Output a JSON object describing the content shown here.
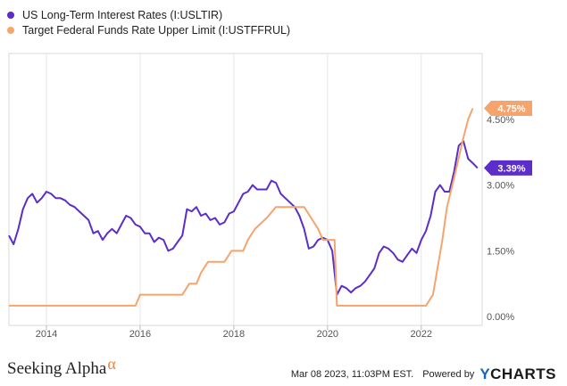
{
  "legend": [
    {
      "label": "US Long-Term Interest Rates (I:USLTIR)",
      "color": "#5b2dc9"
    },
    {
      "label": "Target Federal Funds Rate Upper Limit (I:USTFFRUL)",
      "color": "#f5a46e"
    }
  ],
  "footer": {
    "brand": "Seeking Alpha",
    "brand_mark": "α",
    "timestamp": "Mar 08 2023, 11:03PM EST.",
    "powered": "Powered by",
    "ycharts_y": "Y",
    "ycharts_rest": "CHARTS"
  },
  "chart_data": {
    "type": "line",
    "x_ticks": [
      "2014",
      "2016",
      "2018",
      "2020",
      "2022"
    ],
    "y_ticks": [
      "0.00%",
      "1.50%",
      "3.00%",
      "4.50%"
    ],
    "ylim": [
      -0.2,
      6.0
    ],
    "xlim": [
      2013.2,
      2023.3
    ],
    "grid": "vertical",
    "series": [
      {
        "name": "US Long-Term Interest Rates (I:USLTIR)",
        "color": "#5b2dc9",
        "end_label": "3.39%",
        "points": [
          [
            2013.2,
            1.85
          ],
          [
            2013.3,
            1.65
          ],
          [
            2013.4,
            2.0
          ],
          [
            2013.5,
            2.45
          ],
          [
            2013.6,
            2.7
          ],
          [
            2013.7,
            2.8
          ],
          [
            2013.8,
            2.6
          ],
          [
            2013.9,
            2.7
          ],
          [
            2014.0,
            2.85
          ],
          [
            2014.1,
            2.8
          ],
          [
            2014.2,
            2.7
          ],
          [
            2014.3,
            2.7
          ],
          [
            2014.4,
            2.65
          ],
          [
            2014.5,
            2.55
          ],
          [
            2014.6,
            2.5
          ],
          [
            2014.7,
            2.4
          ],
          [
            2014.8,
            2.3
          ],
          [
            2014.9,
            2.2
          ],
          [
            2015.0,
            1.9
          ],
          [
            2015.1,
            1.95
          ],
          [
            2015.2,
            1.75
          ],
          [
            2015.3,
            1.9
          ],
          [
            2015.4,
            2.0
          ],
          [
            2015.5,
            1.9
          ],
          [
            2015.6,
            2.1
          ],
          [
            2015.7,
            2.3
          ],
          [
            2015.8,
            2.25
          ],
          [
            2015.9,
            2.1
          ],
          [
            2016.0,
            2.05
          ],
          [
            2016.1,
            1.9
          ],
          [
            2016.2,
            1.9
          ],
          [
            2016.3,
            1.7
          ],
          [
            2016.4,
            1.8
          ],
          [
            2016.5,
            1.75
          ],
          [
            2016.6,
            1.5
          ],
          [
            2016.7,
            1.55
          ],
          [
            2016.8,
            1.7
          ],
          [
            2016.9,
            1.85
          ],
          [
            2017.0,
            2.45
          ],
          [
            2017.1,
            2.4
          ],
          [
            2017.2,
            2.5
          ],
          [
            2017.3,
            2.3
          ],
          [
            2017.4,
            2.35
          ],
          [
            2017.5,
            2.2
          ],
          [
            2017.6,
            2.25
          ],
          [
            2017.7,
            2.1
          ],
          [
            2017.8,
            2.15
          ],
          [
            2017.9,
            2.35
          ],
          [
            2018.0,
            2.4
          ],
          [
            2018.1,
            2.6
          ],
          [
            2018.2,
            2.8
          ],
          [
            2018.3,
            2.85
          ],
          [
            2018.4,
            3.0
          ],
          [
            2018.5,
            2.9
          ],
          [
            2018.6,
            2.9
          ],
          [
            2018.7,
            2.9
          ],
          [
            2018.8,
            3.1
          ],
          [
            2018.9,
            3.05
          ],
          [
            2019.0,
            2.8
          ],
          [
            2019.1,
            2.7
          ],
          [
            2019.2,
            2.6
          ],
          [
            2019.3,
            2.5
          ],
          [
            2019.4,
            2.3
          ],
          [
            2019.5,
            2.0
          ],
          [
            2019.6,
            1.55
          ],
          [
            2019.7,
            1.6
          ],
          [
            2019.8,
            1.75
          ],
          [
            2019.9,
            1.8
          ],
          [
            2020.0,
            1.75
          ],
          [
            2020.1,
            1.5
          ],
          [
            2020.2,
            0.5
          ],
          [
            2020.3,
            0.7
          ],
          [
            2020.4,
            0.65
          ],
          [
            2020.5,
            0.55
          ],
          [
            2020.6,
            0.65
          ],
          [
            2020.7,
            0.7
          ],
          [
            2020.8,
            0.8
          ],
          [
            2020.9,
            0.95
          ],
          [
            2021.0,
            1.1
          ],
          [
            2021.1,
            1.45
          ],
          [
            2021.2,
            1.6
          ],
          [
            2021.3,
            1.55
          ],
          [
            2021.4,
            1.45
          ],
          [
            2021.5,
            1.3
          ],
          [
            2021.6,
            1.25
          ],
          [
            2021.7,
            1.4
          ],
          [
            2021.8,
            1.55
          ],
          [
            2021.9,
            1.45
          ],
          [
            2022.0,
            1.75
          ],
          [
            2022.1,
            1.95
          ],
          [
            2022.2,
            2.3
          ],
          [
            2022.3,
            2.85
          ],
          [
            2022.4,
            3.0
          ],
          [
            2022.5,
            2.85
          ],
          [
            2022.6,
            2.85
          ],
          [
            2022.7,
            3.3
          ],
          [
            2022.8,
            3.9
          ],
          [
            2022.9,
            4.0
          ],
          [
            2023.0,
            3.6
          ],
          [
            2023.1,
            3.5
          ],
          [
            2023.2,
            3.39
          ]
        ]
      },
      {
        "name": "Target Federal Funds Rate Upper Limit (I:USTFFRUL)",
        "color": "#f5a46e",
        "end_label": "4.75%",
        "points": [
          [
            2013.2,
            0.25
          ],
          [
            2015.9,
            0.25
          ],
          [
            2016.0,
            0.5
          ],
          [
            2016.9,
            0.5
          ],
          [
            2017.05,
            0.75
          ],
          [
            2017.2,
            0.75
          ],
          [
            2017.3,
            1.0
          ],
          [
            2017.45,
            1.25
          ],
          [
            2017.8,
            1.25
          ],
          [
            2017.95,
            1.5
          ],
          [
            2018.2,
            1.5
          ],
          [
            2018.3,
            1.75
          ],
          [
            2018.45,
            2.0
          ],
          [
            2018.7,
            2.25
          ],
          [
            2018.9,
            2.5
          ],
          [
            2019.5,
            2.5
          ],
          [
            2019.65,
            2.25
          ],
          [
            2019.8,
            2.0
          ],
          [
            2019.9,
            1.75
          ],
          [
            2020.15,
            1.75
          ],
          [
            2020.2,
            0.25
          ],
          [
            2022.1,
            0.25
          ],
          [
            2022.25,
            0.5
          ],
          [
            2022.33,
            1.0
          ],
          [
            2022.45,
            1.75
          ],
          [
            2022.55,
            2.5
          ],
          [
            2022.72,
            3.25
          ],
          [
            2022.88,
            4.0
          ],
          [
            2023.0,
            4.5
          ],
          [
            2023.1,
            4.75
          ]
        ]
      }
    ]
  }
}
